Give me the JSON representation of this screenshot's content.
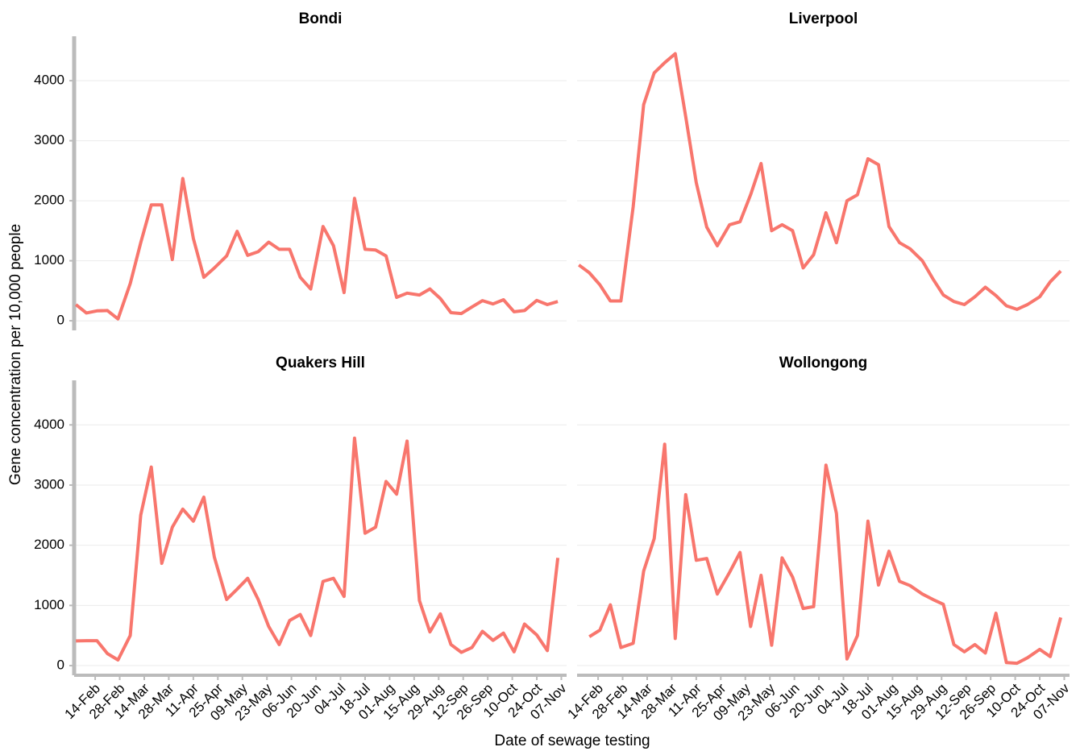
{
  "chart_data": {
    "type": "line",
    "xlabel": "Date of sewage testing",
    "ylabel": "Gene concentration per 10,000 people",
    "x": [
      "03-Feb",
      "09-Feb",
      "15-Feb",
      "21-Feb",
      "27-Feb",
      "06-Mar",
      "12-Mar",
      "18-Mar",
      "24-Mar",
      "30-Mar",
      "05-Apr",
      "11-Apr",
      "17-Apr",
      "23-Apr",
      "30-Apr",
      "06-May",
      "12-May",
      "18-May",
      "24-May",
      "30-May",
      "05-Jun",
      "11-Jun",
      "17-Jun",
      "24-Jun",
      "30-Jun",
      "06-Jul",
      "12-Jul",
      "18-Jul",
      "24-Jul",
      "30-Jul",
      "05-Aug",
      "11-Aug",
      "18-Aug",
      "24-Aug",
      "30-Aug",
      "05-Sep",
      "11-Sep",
      "17-Sep",
      "23-Sep",
      "29-Sep",
      "05-Oct",
      "11-Oct",
      "17-Oct",
      "24-Oct",
      "30-Oct",
      "05-Nov"
    ],
    "xlim": [
      "02-Feb",
      "10-Nov"
    ],
    "xticks": [
      "14-Feb",
      "28-Feb",
      "14-Mar",
      "28-Mar",
      "11-Apr",
      "25-Apr",
      "09-May",
      "23-May",
      "06-Jun",
      "20-Jun",
      "04-Jul",
      "18-Jul",
      "01-Aug",
      "15-Aug",
      "29-Aug",
      "12-Sep",
      "26-Sep",
      "10-Oct",
      "24-Oct",
      "07-Nov"
    ],
    "ylim": [
      -160,
      4740
    ],
    "yticks": [
      0,
      1000,
      2000,
      3000,
      4000
    ],
    "grid": true,
    "color": "#f8766d",
    "panels": [
      {
        "title": "Bondi",
        "values": [
          270,
          130,
          165,
          170,
          30,
          620,
          1300,
          1930,
          1930,
          1020,
          2370,
          1370,
          725,
          880,
          1080,
          1490,
          1090,
          1150,
          1310,
          1190,
          1190,
          725,
          530,
          1570,
          1250,
          470,
          2040,
          1190,
          1180,
          1080,
          390,
          460,
          430,
          530,
          370,
          135,
          120,
          230,
          335,
          280,
          350,
          150,
          170,
          340,
          270,
          320
        ]
      },
      {
        "title": "Liverpool",
        "values": [
          930,
          800,
          600,
          330,
          330,
          1900,
          3600,
          4130,
          4300,
          4450,
          3400,
          2300,
          1560,
          1250,
          1600,
          1650,
          2100,
          2620,
          1500,
          1600,
          1500,
          880,
          1100,
          1800,
          1300,
          2000,
          2100,
          2700,
          2600,
          1570,
          1300,
          1200,
          1000,
          700,
          430,
          320,
          270,
          400,
          560,
          420,
          250,
          190,
          270,
          400,
          650,
          830
        ]
      },
      {
        "title": "Quakers Hill",
        "values": [
          410,
          415,
          415,
          200,
          95,
          500,
          2500,
          3300,
          1700,
          2300,
          2600,
          2400,
          2800,
          1800,
          1100,
          1270,
          1450,
          1100,
          650,
          350,
          750,
          850,
          500,
          1400,
          1450,
          1150,
          3780,
          2200,
          2300,
          3060,
          2850,
          3730,
          1080,
          560,
          860,
          350,
          220,
          300,
          570,
          420,
          540,
          230,
          690,
          510,
          250,
          1790
        ]
      },
      {
        "title": "Wollongong",
        "values": [
          null,
          480,
          590,
          1010,
          300,
          370,
          1570,
          2110,
          3680,
          450,
          2840,
          1750,
          1780,
          1190,
          1550,
          1880,
          650,
          1500,
          340,
          1790,
          1470,
          950,
          980,
          3330,
          2530,
          110,
          500,
          2400,
          1340,
          1900,
          1400,
          1330,
          1190,
          1100,
          1020,
          350,
          230,
          350,
          210,
          870,
          50,
          40,
          130,
          270,
          150,
          800
        ]
      }
    ]
  }
}
